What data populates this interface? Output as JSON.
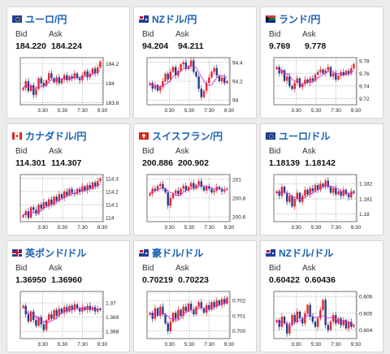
{
  "labels": {
    "bid": "Bid",
    "ask": "Ask"
  },
  "colors": {
    "accent": "#1a5fb4",
    "up": "#e8242c",
    "down": "#1f3f8a",
    "ma": "#d62ad6",
    "grid": "#9a9a9a"
  },
  "cards": [
    {
      "title": "ユーロ/円",
      "flag": "eu-flag-icon",
      "bid": "184.220",
      "ask": "184.224",
      "chart_data": {
        "type": "candlestick",
        "x_ticks": [
          "3:30",
          "5:30",
          "7:30",
          "9:30"
        ],
        "y_ticks": [
          "184.2",
          "184",
          "183.8"
        ],
        "ylim": [
          183.78,
          184.26
        ],
        "close": [
          183.95,
          184.02,
          183.92,
          183.98,
          183.88,
          183.94,
          184.05,
          184.0,
          183.97,
          184.03,
          184.1,
          184.05,
          184.01,
          184.06,
          184.0,
          184.04,
          184.08,
          184.03,
          184.07,
          184.05,
          184.1,
          184.05,
          184.03,
          184.08,
          184.12,
          184.06,
          184.1,
          184.15,
          184.1,
          184.16,
          184.22
        ]
      }
    },
    {
      "title": "NZドル/円",
      "flag": "nz-flag-icon",
      "bid": "94.204",
      "ask": "94.211",
      "chart_data": {
        "type": "candlestick",
        "x_ticks": [
          "3:30",
          "5:30",
          "7:30",
          "9:30"
        ],
        "y_ticks": [
          "94.4",
          "94.2",
          "94"
        ],
        "ylim": [
          93.95,
          94.45
        ],
        "close": [
          94.18,
          94.12,
          94.16,
          94.1,
          94.14,
          94.2,
          94.28,
          94.22,
          94.3,
          94.35,
          94.26,
          94.31,
          94.38,
          94.4,
          94.33,
          94.36,
          94.42,
          94.3,
          94.25,
          94.12,
          94.03,
          94.1,
          94.18,
          94.24,
          94.3,
          94.34,
          94.26,
          94.2,
          94.24,
          94.18,
          94.2
        ]
      }
    },
    {
      "title": "ランド/円",
      "flag": "za-flag-icon",
      "bid": "9.769",
      "ask": "9.778",
      "chart_data": {
        "type": "candlestick",
        "x_ticks": [
          "3:30",
          "5:30",
          "7:30",
          "9:30"
        ],
        "y_ticks": [
          "9.78",
          "9.76",
          "9.74",
          "9.72"
        ],
        "ylim": [
          9.71,
          9.785
        ],
        "close": [
          9.77,
          9.76,
          9.765,
          9.748,
          9.755,
          9.74,
          9.735,
          9.745,
          9.752,
          9.738,
          9.743,
          9.75,
          9.745,
          9.752,
          9.748,
          9.758,
          9.762,
          9.766,
          9.76,
          9.765,
          9.77,
          9.755,
          9.76,
          9.75,
          9.756,
          9.762,
          9.758,
          9.764,
          9.76,
          9.768,
          9.775
        ]
      }
    },
    {
      "title": "カナダドル/円",
      "flag": "ca-flag-icon",
      "bid": "114.301",
      "ask": "114.307",
      "chart_data": {
        "type": "candlestick",
        "x_ticks": [
          "3:30",
          "5:30",
          "7:30",
          "9:30"
        ],
        "y_ticks": [
          "114.3",
          "114.2",
          "114.1",
          "114"
        ],
        "ylim": [
          113.97,
          114.33
        ],
        "close": [
          114.02,
          114.05,
          114.0,
          114.08,
          114.06,
          114.03,
          114.1,
          114.07,
          114.12,
          114.09,
          114.14,
          114.1,
          114.16,
          114.13,
          114.18,
          114.15,
          114.2,
          114.17,
          114.22,
          114.19,
          114.18,
          114.22,
          114.2,
          114.24,
          114.21,
          114.25,
          114.22,
          114.27,
          114.24,
          114.28,
          114.3
        ]
      }
    },
    {
      "title": "スイスフラン/円",
      "flag": "ch-flag-icon",
      "bid": "200.886",
      "ask": "200.902",
      "chart_data": {
        "type": "candlestick",
        "x_ticks": [
          "3:30",
          "5:30",
          "7:30",
          "9:30"
        ],
        "y_ticks": [
          "201",
          "200.8",
          "200.6"
        ],
        "ylim": [
          200.55,
          201.05
        ],
        "close": [
          200.85,
          200.9,
          200.88,
          200.93,
          200.95,
          200.9,
          200.86,
          200.72,
          200.8,
          200.85,
          200.88,
          200.84,
          200.9,
          200.93,
          200.88,
          200.92,
          200.96,
          200.9,
          200.94,
          200.98,
          200.92,
          200.88,
          200.92,
          200.9,
          200.86,
          200.88,
          200.92,
          200.9,
          200.87,
          200.89,
          200.9
        ]
      }
    },
    {
      "title": "ユーロ/ドル",
      "flag": "eu-flag-icon",
      "bid": "1.18139",
      "ask": "1.18142",
      "chart_data": {
        "type": "candlestick",
        "x_ticks": [
          "3:30",
          "5:30",
          "7:30",
          "9:30"
        ],
        "y_ticks": [
          "1.182",
          "1.181",
          "1.18"
        ],
        "ylim": [
          1.1795,
          1.1826
        ],
        "close": [
          1.1815,
          1.1812,
          1.1818,
          1.1814,
          1.1808,
          1.1812,
          1.1805,
          1.181,
          1.1814,
          1.1808,
          1.1812,
          1.1816,
          1.1813,
          1.1817,
          1.1815,
          1.1819,
          1.1816,
          1.182,
          1.1818,
          1.1822,
          1.1818,
          1.1814,
          1.1817,
          1.1813,
          1.1815,
          1.1812,
          1.1816,
          1.1813,
          1.1811,
          1.1815,
          1.1814
        ]
      }
    },
    {
      "title": "英ポンド/ドル",
      "flag": "uk-flag-icon",
      "bid": "1.36950",
      "ask": "1.36960",
      "chart_data": {
        "type": "candlestick",
        "x_ticks": [
          "3:30",
          "5:30",
          "7:30",
          "9:30"
        ],
        "y_ticks": [
          "1.37",
          "1.369",
          "1.368"
        ],
        "ylim": [
          1.3675,
          1.3708
        ],
        "close": [
          1.3698,
          1.3692,
          1.3687,
          1.3694,
          1.3688,
          1.3684,
          1.369,
          1.3685,
          1.3681,
          1.3688,
          1.3692,
          1.3689,
          1.3695,
          1.3691,
          1.3696,
          1.3693,
          1.3697,
          1.3694,
          1.3698,
          1.3695,
          1.3699,
          1.3696,
          1.3694,
          1.3697,
          1.3695,
          1.3698,
          1.3695,
          1.3697,
          1.3694,
          1.3696,
          1.3695
        ]
      }
    },
    {
      "title": "豪ドル/ドル",
      "flag": "au-flag-icon",
      "bid": "0.70219",
      "ask": "0.70223",
      "chart_data": {
        "type": "candlestick",
        "x_ticks": [
          "3:30",
          "5:30",
          "7:30",
          "9:30"
        ],
        "y_ticks": [
          "0.702",
          "0.701",
          "0.700"
        ],
        "ylim": [
          0.6995,
          0.7026
        ],
        "close": [
          0.7012,
          0.7008,
          0.7015,
          0.701,
          0.7016,
          0.7011,
          0.7005,
          0.7,
          0.7006,
          0.7012,
          0.7008,
          0.7014,
          0.701,
          0.7016,
          0.7013,
          0.7018,
          0.7014,
          0.7011,
          0.7016,
          0.7019,
          0.7015,
          0.7012,
          0.7017,
          0.7014,
          0.7019,
          0.7016,
          0.702,
          0.7017,
          0.7021,
          0.7018,
          0.7022
        ]
      }
    },
    {
      "title": "NZドル/ドル",
      "flag": "nz-flag-icon",
      "bid": "0.60422",
      "ask": "0.60436",
      "chart_data": {
        "type": "candlestick",
        "x_ticks": [
          "3:30",
          "5:30",
          "7:30",
          "9:30"
        ],
        "y_ticks": [
          "0.606",
          "0.605",
          "0.604"
        ],
        "ylim": [
          0.6035,
          0.6063
        ],
        "close": [
          0.6046,
          0.6042,
          0.6048,
          0.6044,
          0.6038,
          0.6043,
          0.6049,
          0.6045,
          0.6051,
          0.6047,
          0.6044,
          0.605,
          0.6055,
          0.6048,
          0.6045,
          0.6042,
          0.6047,
          0.6052,
          0.6058,
          0.6043,
          0.604,
          0.6045,
          0.6049,
          0.6044,
          0.6047,
          0.6043,
          0.6046,
          0.6041,
          0.6045,
          0.6042,
          0.6043
        ]
      }
    }
  ]
}
